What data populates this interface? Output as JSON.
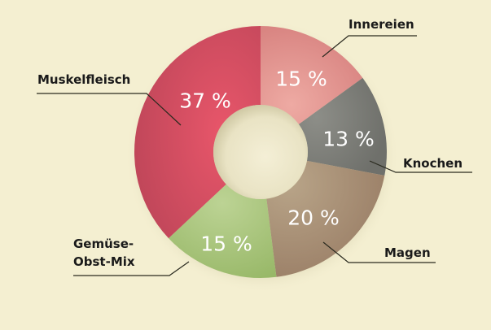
{
  "chart_data": {
    "type": "pie",
    "variant": "donut",
    "title": "",
    "categories": [
      "Innereien",
      "Knochen",
      "Magen",
      "Gemüse-Obst-Mix",
      "Muskelfleisch"
    ],
    "values": [
      15,
      13,
      20,
      15,
      37
    ],
    "unit": "%",
    "start_angle": "12 o'clock, clockwise",
    "colors": [
      "#e08e8a",
      "#7b7c77",
      "#a58a70",
      "#a9c47a",
      "#d44a5e"
    ]
  },
  "labels": {
    "innereien": "Innereien",
    "knochen": "Knochen",
    "magen": "Magen",
    "gemuese_line1": "Gemüse-",
    "gemuese_line2": "Obst-Mix",
    "muskelfleisch": "Muskelfleisch"
  },
  "percentages": {
    "innereien": "15 %",
    "knochen": "13 %",
    "magen": "20 %",
    "gemuese": "15 %",
    "muskelfleisch": "37 %"
  },
  "colors": {
    "background": "#f4efd1",
    "hole": "#efead0"
  }
}
